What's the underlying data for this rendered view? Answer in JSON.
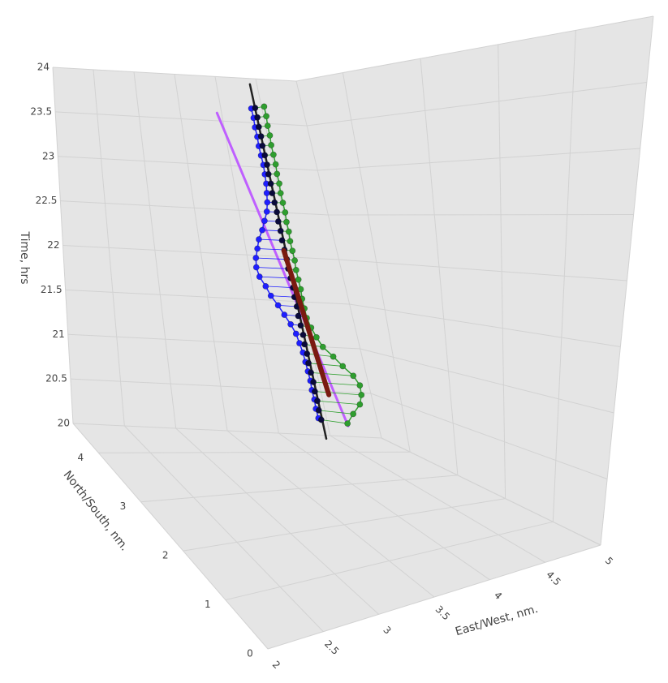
{
  "chart_data": {
    "type": "scatter3d",
    "xaxis_title": "East/West, nm.",
    "yaxis_title": "North/South, nm.",
    "zaxis_title": "Time, hrs",
    "xlim": [
      2,
      5
    ],
    "xticks": [
      2,
      2.5,
      3,
      3.5,
      4,
      4.5,
      5
    ],
    "ylim": [
      0,
      4.6
    ],
    "yticks": [
      0,
      1,
      2,
      3,
      4
    ],
    "zlim": [
      20,
      24
    ],
    "zticks": [
      20,
      20.5,
      21,
      21.5,
      22,
      22.5,
      23,
      23.5,
      24
    ],
    "grid": true,
    "series": [
      {
        "mode": "lines",
        "color": "#bf5fff",
        "width": 3,
        "x": [
          4.4,
          3.45
        ],
        "y": [
          3.9,
          3.9
        ],
        "z": [
          20.3,
          23.5
        ]
      },
      {
        "mode": "markers+lines",
        "color": "#1f1fff",
        "width": 1.5,
        "hatch": true,
        "x": [
          4.25,
          4.24,
          4.24,
          4.23,
          4.23,
          4.22,
          4.21,
          4.2,
          4.18,
          4.16,
          4.12,
          4.07,
          4.02,
          3.96,
          3.92,
          3.87,
          3.85,
          3.86,
          3.89,
          3.92,
          3.97,
          4.01,
          4.05,
          4.07,
          4.08,
          4.09,
          4.09,
          4.09,
          4.08,
          4.07,
          4.07,
          4.06,
          4.06,
          4.05
        ],
        "y": [
          4.2,
          4.2,
          4.2,
          4.2,
          4.2,
          4.2,
          4.2,
          4.2,
          4.2,
          4.2,
          4.2,
          4.2,
          4.2,
          4.2,
          4.2,
          4.2,
          4.2,
          4.2,
          4.2,
          4.2,
          4.2,
          4.2,
          4.2,
          4.2,
          4.2,
          4.2,
          4.2,
          4.2,
          4.2,
          4.2,
          4.2,
          4.2,
          4.2,
          4.2
        ],
        "z": [
          20.3,
          20.4,
          20.5,
          20.6,
          20.7,
          20.8,
          20.9,
          21,
          21.1,
          21.2,
          21.3,
          21.4,
          21.5,
          21.6,
          21.7,
          21.8,
          21.9,
          22,
          22.1,
          22.2,
          22.3,
          22.4,
          22.5,
          22.6,
          22.7,
          22.8,
          22.9,
          23,
          23.1,
          23.2,
          23.3,
          23.4,
          23.5,
          23.6
        ]
      },
      {
        "mode": "markers+lines",
        "color": "#2e9e2e",
        "width": 1.5,
        "hatch": true,
        "x": [
          4.44,
          4.51,
          4.59,
          4.62,
          4.62,
          4.57,
          4.48,
          4.4,
          4.31,
          4.26,
          4.22,
          4.19,
          4.18,
          4.17,
          4.17,
          4.16,
          4.15,
          4.15,
          4.14,
          4.13,
          4.13,
          4.12,
          4.12,
          4.11,
          4.1,
          4.1,
          4.09,
          4.09,
          4.08,
          4.07,
          4.07,
          4.06,
          4.06,
          4.05
        ],
        "y": [
          4,
          4,
          4,
          4,
          4,
          4,
          4,
          4,
          4,
          4,
          4,
          4,
          4,
          4,
          4,
          4,
          4,
          4,
          4,
          4,
          4,
          4,
          4,
          4,
          4,
          4,
          4,
          4,
          4,
          4,
          4,
          4,
          4,
          4
        ],
        "z": [
          20.3,
          20.4,
          20.5,
          20.6,
          20.7,
          20.8,
          20.9,
          21,
          21.1,
          21.2,
          21.3,
          21.4,
          21.5,
          21.6,
          21.7,
          21.8,
          21.9,
          22,
          22.1,
          22.2,
          22.3,
          22.4,
          22.5,
          22.6,
          22.7,
          22.8,
          22.9,
          23,
          23.1,
          23.2,
          23.3,
          23.4,
          23.5,
          23.6
        ]
      },
      {
        "mode": "lines",
        "color": "#222222",
        "width": 2.5,
        "x": [
          4.27,
          4.03
        ],
        "y": [
          4.14,
          4.14
        ],
        "z": [
          20.1,
          23.85
        ]
      },
      {
        "mode": "markers",
        "color": "#0a0a3a",
        "width": 1,
        "x": [
          4.25,
          4.24,
          4.24,
          4.23,
          4.23,
          4.22,
          4.21,
          4.21,
          4.2,
          4.2,
          4.19,
          4.18,
          4.18,
          4.17,
          4.17,
          4.16,
          4.15,
          4.15,
          4.14,
          4.13,
          4.13,
          4.12,
          4.12,
          4.11,
          4.1,
          4.1,
          4.09,
          4.09,
          4.08,
          4.07,
          4.07,
          4.06,
          4.06,
          4.05
        ],
        "y": [
          4.14,
          4.14,
          4.14,
          4.14,
          4.14,
          4.14,
          4.14,
          4.14,
          4.14,
          4.14,
          4.14,
          4.14,
          4.14,
          4.14,
          4.14,
          4.14,
          4.14,
          4.14,
          4.14,
          4.14,
          4.14,
          4.14,
          4.14,
          4.14,
          4.14,
          4.14,
          4.14,
          4.14,
          4.14,
          4.14,
          4.14,
          4.14,
          4.14,
          4.14
        ],
        "z": [
          20.3,
          20.4,
          20.5,
          20.6,
          20.7,
          20.8,
          20.9,
          21,
          21.1,
          21.2,
          21.3,
          21.4,
          21.5,
          21.6,
          21.7,
          21.8,
          21.9,
          22,
          22.1,
          22.2,
          22.3,
          22.4,
          22.5,
          22.6,
          22.7,
          22.8,
          22.9,
          23,
          23.1,
          23.2,
          23.3,
          23.4,
          23.5,
          23.6
        ]
      },
      {
        "mode": "lines",
        "color": "#7a1a10",
        "width": 6,
        "x": [
          4.05,
          4.3
        ],
        "y": [
          4.0,
          4.0
        ],
        "z": [
          22.1,
          20.6
        ]
      }
    ]
  }
}
